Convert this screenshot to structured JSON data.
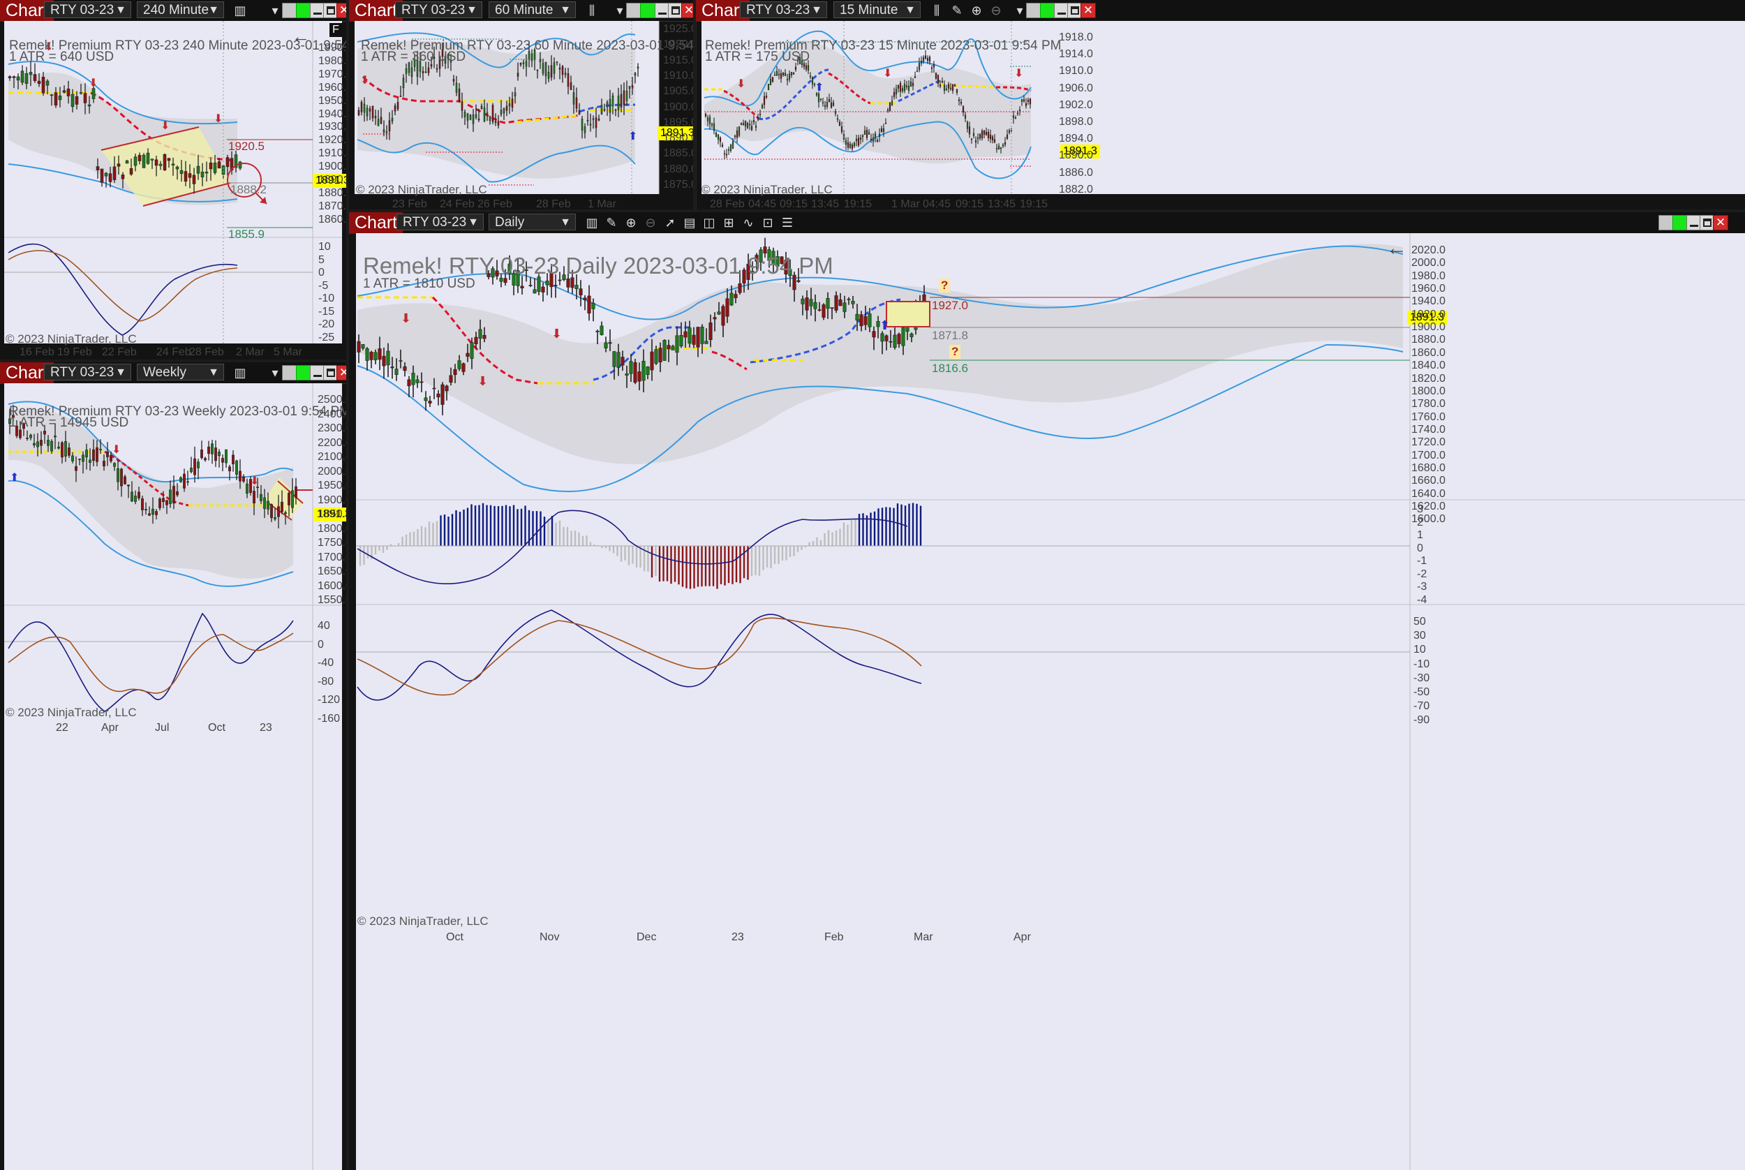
{
  "charts": {
    "c240": {
      "chart_btn": "Chart",
      "instrument": "RTY 03-23",
      "interval": "240 Minute",
      "label": "Remek!  Premium  RTY 03-23  240 Minute  2023-03-01 9:54 PM",
      "atr": "1 ATR = 640 USD",
      "yticks": [
        "1990.0",
        "1980.0",
        "1970.0",
        "1960.0",
        "1950.0",
        "1940.0",
        "1930.0",
        "1920.0",
        "1910.0",
        "1900.0",
        "1890.0",
        "1880.0",
        "1870.0",
        "1860.0"
      ],
      "osc_ticks": [
        "10",
        "5",
        "0",
        "-5",
        "-10",
        "-15",
        "-20",
        "-25"
      ],
      "xticks": [
        "16 Feb",
        "19 Feb",
        "22 Feb",
        "24 Feb",
        "28 Feb",
        "2 Mar",
        "5 Mar"
      ],
      "levels": [
        "1920.5",
        "1888.2",
        "1855.9"
      ],
      "price": "1891.3",
      "f_button": "F",
      "copyright": "© 2023 NinjaTrader, LLC"
    },
    "c60": {
      "chart_btn": "Chart",
      "instrument": "RTY 03-23",
      "interval": "60 Minute",
      "label": "Remek!  Premium  RTY 03-23  60 Minute  2023-03-01 9:54 PM",
      "atr": "1 ATR = 360 USD",
      "yticks": [
        "1925.0",
        "1920.0",
        "1915.0",
        "1910.0",
        "1905.0",
        "1900.0",
        "1895.0",
        "1890.0",
        "1885.0",
        "1880.0",
        "1875.0"
      ],
      "xticks": [
        "23 Feb",
        "24 Feb",
        "26 Feb",
        "28 Feb",
        "1 Mar"
      ],
      "price": "1891.3",
      "copyright": "© 2023 NinjaTrader, LLC"
    },
    "c15": {
      "chart_btn": "Chart",
      "instrument": "RTY 03-23",
      "interval": "15 Minute",
      "label": "Remek!  Premium  RTY 03-23  15 Minute  2023-03-01 9:54 PM",
      "atr": "1 ATR = 175 USD",
      "yticks": [
        "1918.0",
        "1914.0",
        "1910.0",
        "1906.0",
        "1902.0",
        "1898.0",
        "1894.0",
        "1890.0",
        "1886.0",
        "1882.0"
      ],
      "xticks": [
        "28 Feb",
        "04:45",
        "09:15",
        "13:45",
        "19:15",
        "1 Mar",
        "04:45",
        "09:15",
        "13:45",
        "19:15"
      ],
      "price": "1891.3",
      "copyright": "© 2023 NinjaTrader, LLC"
    },
    "cw": {
      "chart_btn": "Chart",
      "instrument": "RTY 03-23",
      "interval": "Weekly",
      "label": "Remek!  Premium  RTY 03-23  Weekly  2023-03-01 9:54 PM",
      "atr": "1 ATR = 14945 USD",
      "yticks": [
        "2500.0",
        "2400.0",
        "2300.0",
        "2200.0",
        "2100.0",
        "2000.0",
        "1950.0",
        "1900.0",
        "1850.0",
        "1800.0",
        "1750.0",
        "1700.0",
        "1650.0",
        "1600.0",
        "1550.0"
      ],
      "osc_ticks": [
        "40",
        "0",
        "-40",
        "-80",
        "-120",
        "-160"
      ],
      "xticks": [
        "22",
        "Apr",
        "Jul",
        "Oct",
        "23"
      ],
      "price": "1891.3",
      "copyright": "© 2023 NinjaTrader, LLC"
    },
    "cd": {
      "chart_btn": "Chart",
      "instrument": "RTY 03-23",
      "interval": "Daily",
      "label": "Remek!  RTY 03-23  Daily  2023-03-01 9:54 PM",
      "atr": "1 ATR = 1810 USD",
      "yticks": [
        "2020.0",
        "2000.0",
        "1980.0",
        "1960.0",
        "1940.0",
        "1920.0",
        "1900.0",
        "1880.0",
        "1860.0",
        "1840.0",
        "1820.0",
        "1800.0",
        "1780.0",
        "1760.0",
        "1740.0",
        "1720.0",
        "1700.0",
        "1680.0",
        "1660.0",
        "1640.0",
        "1620.0",
        "1600.0"
      ],
      "hist_ticks": [
        "3",
        "2",
        "1",
        "0",
        "-1",
        "-2",
        "-3",
        "-4"
      ],
      "osc_ticks": [
        "50",
        "30",
        "10",
        "-10",
        "-30",
        "-50",
        "-70",
        "-90"
      ],
      "xticks": [
        "Oct",
        "Nov",
        "Dec",
        "23",
        "Feb",
        "Mar",
        "Apr"
      ],
      "levels": [
        "1927.0",
        "1871.8",
        "1816.6"
      ],
      "marks": [
        "?",
        "?"
      ],
      "price": "1891.3",
      "copyright": "© 2023 NinjaTrader, LLC"
    }
  },
  "colors": {
    "bull": "#1f7a1f",
    "bear": "#8b1414",
    "band": "#3a9ae0",
    "yellow": "#ffe600",
    "red_dash": "#e0102a",
    "blue_dash": "#3355dd",
    "osc_fast": "#1a1a80",
    "osc_slow": "#a0521c",
    "plot_bg": "#e8e8f4",
    "cloud": "#d9d9de"
  }
}
